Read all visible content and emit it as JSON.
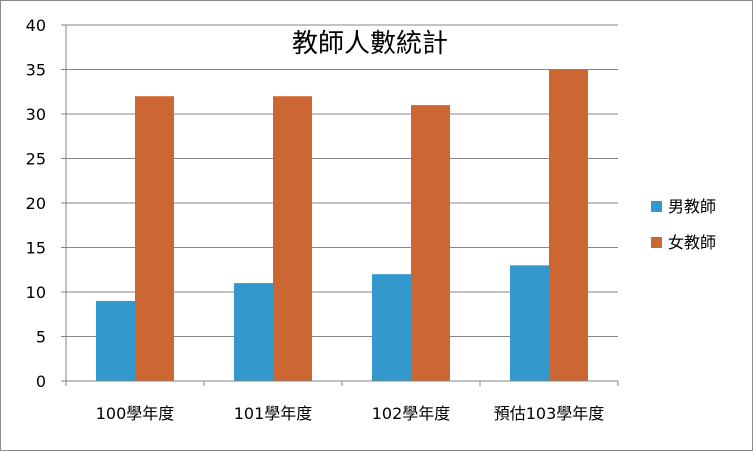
{
  "chart_data": {
    "type": "bar",
    "title": "教師人數統計",
    "xlabel": "",
    "ylabel": "",
    "categories": [
      "100學年度",
      "101學年度",
      "102學年度",
      "預估103學年度"
    ],
    "series": [
      {
        "name": "男教師",
        "values": [
          9,
          11,
          12,
          13
        ],
        "color": "#3399CC"
      },
      {
        "name": "女教師",
        "values": [
          32,
          32,
          31,
          35
        ],
        "color": "#CC6633"
      }
    ],
    "ylim": [
      0,
      40
    ],
    "yticks": [
      0,
      5,
      10,
      15,
      20,
      25,
      30,
      35,
      40
    ],
    "grid": true,
    "legend_position": "right"
  }
}
